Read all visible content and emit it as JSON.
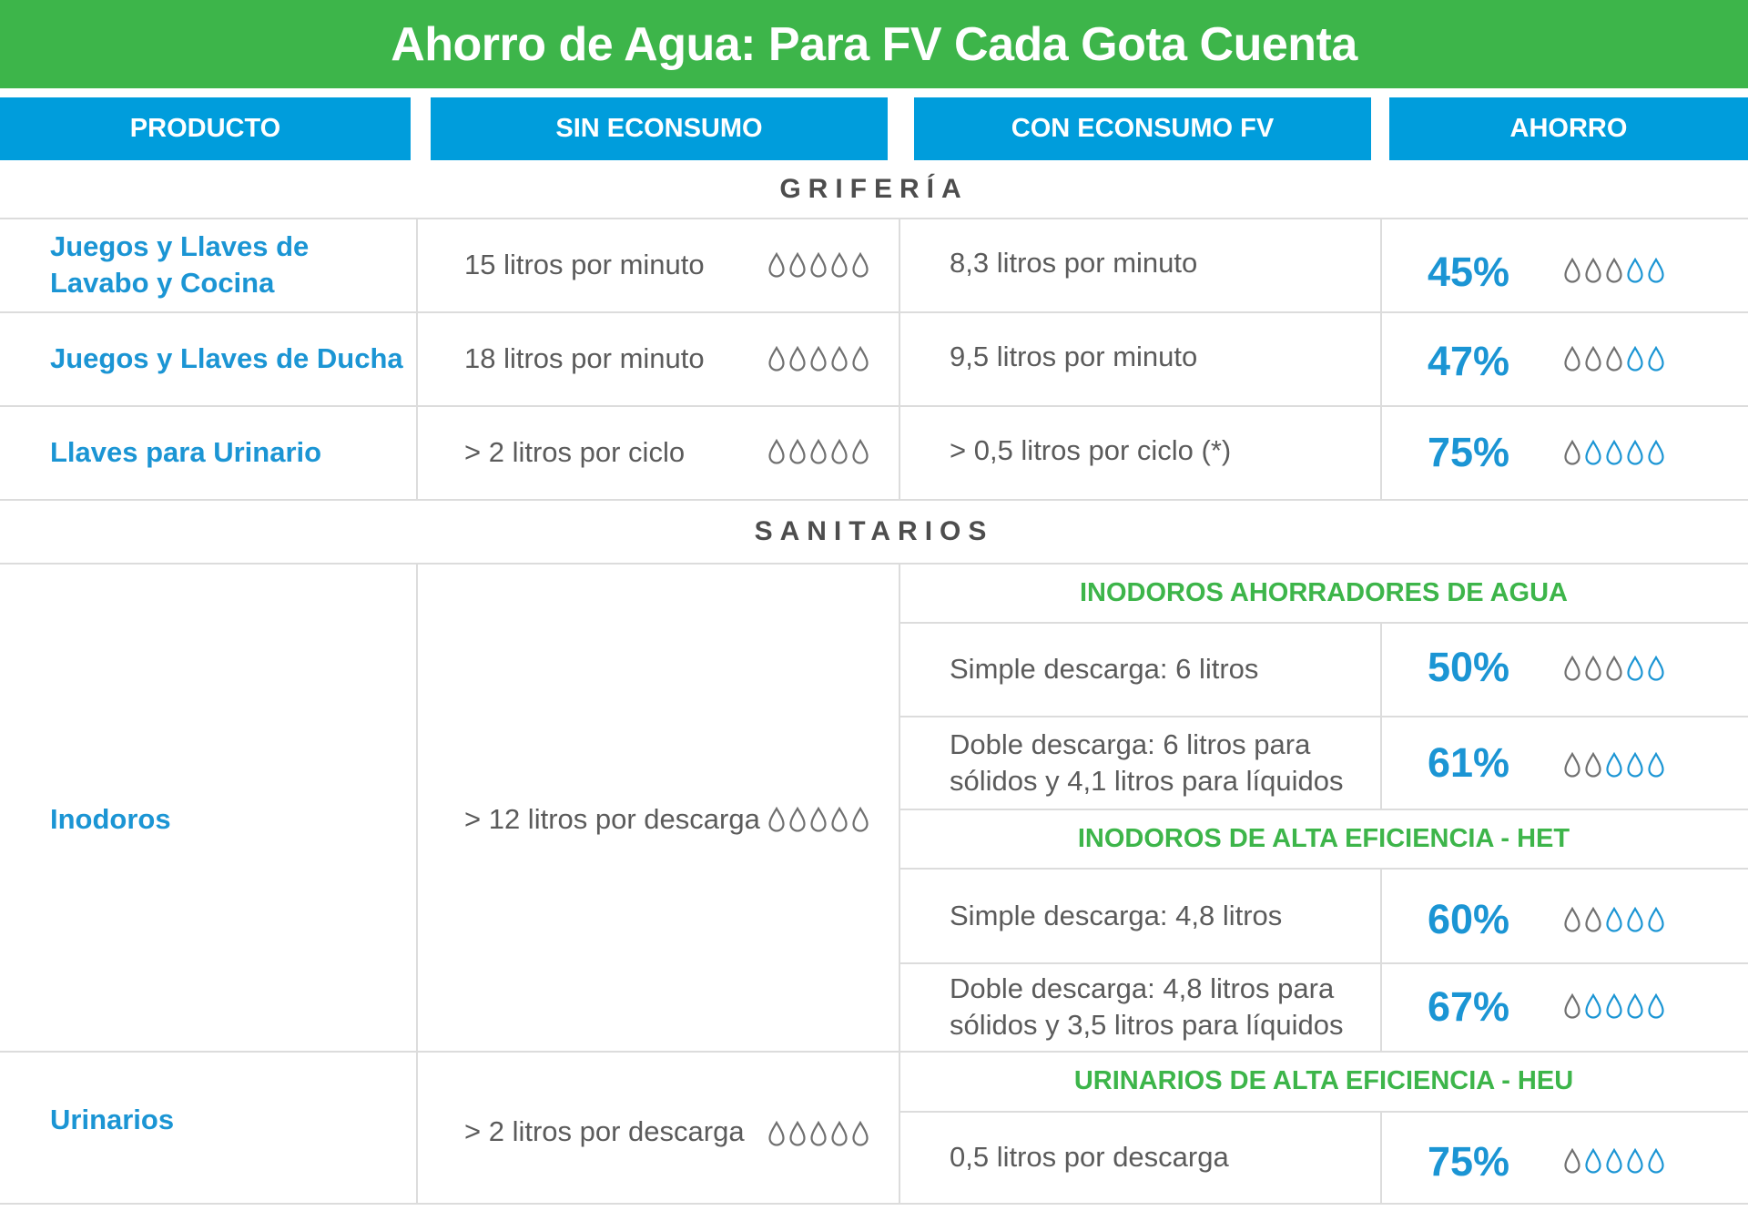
{
  "title": "Ahorro de Agua: Para FV Cada Gota Cuenta",
  "colors": {
    "title_bg": "#3db54a",
    "header_bg": "#009ddc",
    "accent_blue": "#1b95d4",
    "accent_green": "#3db54a",
    "drop_gray": "#707070",
    "drop_blue": "#1b95d4"
  },
  "columns": [
    "PRODUCTO",
    "SIN ECONSUMO",
    "CON ECONSUMO FV",
    "AHORRO"
  ],
  "sections": {
    "griferia": "GRIFERÍA",
    "sanitarios": "SANITARIOS"
  },
  "rows": {
    "lavabo": {
      "product": "Juegos y Llaves de Lavabo y Cocina",
      "sin": "15 litros por minuto",
      "con": "8,3 litros por minuto",
      "ahorro": "45%",
      "blue_drops": 2
    },
    "ducha": {
      "product": "Juegos y Llaves de Ducha",
      "sin": "18 litros por minuto",
      "con": "9,5 litros por minuto",
      "ahorro": "47%",
      "blue_drops": 2
    },
    "urinario_llaves": {
      "product": "Llaves para Urinario",
      "sin": "> 2 litros por ciclo",
      "con": "> 0,5 litros por ciclo (*)",
      "ahorro": "75%",
      "blue_drops": 4
    },
    "inodoros": {
      "product": "Inodoros",
      "sin": "> 12 litros por descarga",
      "group1": "INODOROS AHORRADORES DE AGUA",
      "s1": {
        "con": "Simple descarga: 6 litros",
        "ahorro": "50%",
        "blue_drops": 2
      },
      "d1": {
        "con_line1": "Doble descarga: 6 litros para",
        "con_line2": "sólidos y 4,1 litros para líquidos",
        "ahorro": "61%",
        "blue_drops": 3
      },
      "group2": "INODOROS DE ALTA EFICIENCIA - HET",
      "s2": {
        "con": "Simple descarga: 4,8 litros",
        "ahorro": "60%",
        "blue_drops": 3
      },
      "d2": {
        "con_line1": "Doble descarga: 4,8 litros para",
        "con_line2": "sólidos y 3,5 litros para líquidos",
        "ahorro": "67%",
        "blue_drops": 4
      }
    },
    "urinarios": {
      "product": "Urinarios",
      "sin": "> 2 litros por descarga",
      "group": "URINARIOS DE ALTA EFICIENCIA - HEU",
      "con": "0,5 litros por descarga",
      "ahorro": "75%",
      "blue_drops": 4
    }
  },
  "drops_total": 5
}
